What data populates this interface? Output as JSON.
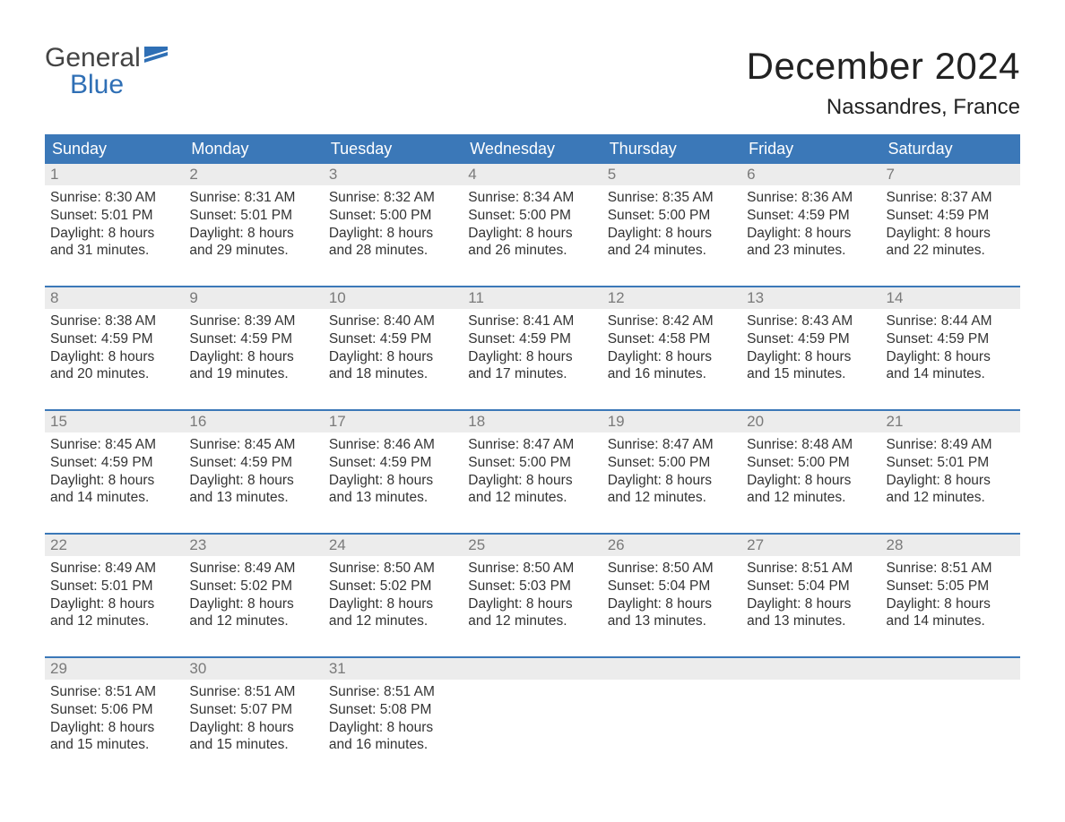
{
  "brand": {
    "general": "General",
    "blue": "Blue"
  },
  "title": "December 2024",
  "location": "Nassandres, France",
  "colors": {
    "header_bg": "#3b78b8",
    "header_text": "#ffffff",
    "daynum_bg": "#ececec",
    "daynum_text": "#7a7a7a",
    "body_text": "#333333",
    "rule": "#3b78b8",
    "logo_blue": "#2f6fb5"
  },
  "weekdays": [
    "Sunday",
    "Monday",
    "Tuesday",
    "Wednesday",
    "Thursday",
    "Friday",
    "Saturday"
  ],
  "weeks": [
    [
      {
        "n": "1",
        "sunrise": "Sunrise: 8:30 AM",
        "sunset": "Sunset: 5:01 PM",
        "d1": "Daylight: 8 hours",
        "d2": "and 31 minutes."
      },
      {
        "n": "2",
        "sunrise": "Sunrise: 8:31 AM",
        "sunset": "Sunset: 5:01 PM",
        "d1": "Daylight: 8 hours",
        "d2": "and 29 minutes."
      },
      {
        "n": "3",
        "sunrise": "Sunrise: 8:32 AM",
        "sunset": "Sunset: 5:00 PM",
        "d1": "Daylight: 8 hours",
        "d2": "and 28 minutes."
      },
      {
        "n": "4",
        "sunrise": "Sunrise: 8:34 AM",
        "sunset": "Sunset: 5:00 PM",
        "d1": "Daylight: 8 hours",
        "d2": "and 26 minutes."
      },
      {
        "n": "5",
        "sunrise": "Sunrise: 8:35 AM",
        "sunset": "Sunset: 5:00 PM",
        "d1": "Daylight: 8 hours",
        "d2": "and 24 minutes."
      },
      {
        "n": "6",
        "sunrise": "Sunrise: 8:36 AM",
        "sunset": "Sunset: 4:59 PM",
        "d1": "Daylight: 8 hours",
        "d2": "and 23 minutes."
      },
      {
        "n": "7",
        "sunrise": "Sunrise: 8:37 AM",
        "sunset": "Sunset: 4:59 PM",
        "d1": "Daylight: 8 hours",
        "d2": "and 22 minutes."
      }
    ],
    [
      {
        "n": "8",
        "sunrise": "Sunrise: 8:38 AM",
        "sunset": "Sunset: 4:59 PM",
        "d1": "Daylight: 8 hours",
        "d2": "and 20 minutes."
      },
      {
        "n": "9",
        "sunrise": "Sunrise: 8:39 AM",
        "sunset": "Sunset: 4:59 PM",
        "d1": "Daylight: 8 hours",
        "d2": "and 19 minutes."
      },
      {
        "n": "10",
        "sunrise": "Sunrise: 8:40 AM",
        "sunset": "Sunset: 4:59 PM",
        "d1": "Daylight: 8 hours",
        "d2": "and 18 minutes."
      },
      {
        "n": "11",
        "sunrise": "Sunrise: 8:41 AM",
        "sunset": "Sunset: 4:59 PM",
        "d1": "Daylight: 8 hours",
        "d2": "and 17 minutes."
      },
      {
        "n": "12",
        "sunrise": "Sunrise: 8:42 AM",
        "sunset": "Sunset: 4:58 PM",
        "d1": "Daylight: 8 hours",
        "d2": "and 16 minutes."
      },
      {
        "n": "13",
        "sunrise": "Sunrise: 8:43 AM",
        "sunset": "Sunset: 4:59 PM",
        "d1": "Daylight: 8 hours",
        "d2": "and 15 minutes."
      },
      {
        "n": "14",
        "sunrise": "Sunrise: 8:44 AM",
        "sunset": "Sunset: 4:59 PM",
        "d1": "Daylight: 8 hours",
        "d2": "and 14 minutes."
      }
    ],
    [
      {
        "n": "15",
        "sunrise": "Sunrise: 8:45 AM",
        "sunset": "Sunset: 4:59 PM",
        "d1": "Daylight: 8 hours",
        "d2": "and 14 minutes."
      },
      {
        "n": "16",
        "sunrise": "Sunrise: 8:45 AM",
        "sunset": "Sunset: 4:59 PM",
        "d1": "Daylight: 8 hours",
        "d2": "and 13 minutes."
      },
      {
        "n": "17",
        "sunrise": "Sunrise: 8:46 AM",
        "sunset": "Sunset: 4:59 PM",
        "d1": "Daylight: 8 hours",
        "d2": "and 13 minutes."
      },
      {
        "n": "18",
        "sunrise": "Sunrise: 8:47 AM",
        "sunset": "Sunset: 5:00 PM",
        "d1": "Daylight: 8 hours",
        "d2": "and 12 minutes."
      },
      {
        "n": "19",
        "sunrise": "Sunrise: 8:47 AM",
        "sunset": "Sunset: 5:00 PM",
        "d1": "Daylight: 8 hours",
        "d2": "and 12 minutes."
      },
      {
        "n": "20",
        "sunrise": "Sunrise: 8:48 AM",
        "sunset": "Sunset: 5:00 PM",
        "d1": "Daylight: 8 hours",
        "d2": "and 12 minutes."
      },
      {
        "n": "21",
        "sunrise": "Sunrise: 8:49 AM",
        "sunset": "Sunset: 5:01 PM",
        "d1": "Daylight: 8 hours",
        "d2": "and 12 minutes."
      }
    ],
    [
      {
        "n": "22",
        "sunrise": "Sunrise: 8:49 AM",
        "sunset": "Sunset: 5:01 PM",
        "d1": "Daylight: 8 hours",
        "d2": "and 12 minutes."
      },
      {
        "n": "23",
        "sunrise": "Sunrise: 8:49 AM",
        "sunset": "Sunset: 5:02 PM",
        "d1": "Daylight: 8 hours",
        "d2": "and 12 minutes."
      },
      {
        "n": "24",
        "sunrise": "Sunrise: 8:50 AM",
        "sunset": "Sunset: 5:02 PM",
        "d1": "Daylight: 8 hours",
        "d2": "and 12 minutes."
      },
      {
        "n": "25",
        "sunrise": "Sunrise: 8:50 AM",
        "sunset": "Sunset: 5:03 PM",
        "d1": "Daylight: 8 hours",
        "d2": "and 12 minutes."
      },
      {
        "n": "26",
        "sunrise": "Sunrise: 8:50 AM",
        "sunset": "Sunset: 5:04 PM",
        "d1": "Daylight: 8 hours",
        "d2": "and 13 minutes."
      },
      {
        "n": "27",
        "sunrise": "Sunrise: 8:51 AM",
        "sunset": "Sunset: 5:04 PM",
        "d1": "Daylight: 8 hours",
        "d2": "and 13 minutes."
      },
      {
        "n": "28",
        "sunrise": "Sunrise: 8:51 AM",
        "sunset": "Sunset: 5:05 PM",
        "d1": "Daylight: 8 hours",
        "d2": "and 14 minutes."
      }
    ],
    [
      {
        "n": "29",
        "sunrise": "Sunrise: 8:51 AM",
        "sunset": "Sunset: 5:06 PM",
        "d1": "Daylight: 8 hours",
        "d2": "and 15 minutes."
      },
      {
        "n": "30",
        "sunrise": "Sunrise: 8:51 AM",
        "sunset": "Sunset: 5:07 PM",
        "d1": "Daylight: 8 hours",
        "d2": "and 15 minutes."
      },
      {
        "n": "31",
        "sunrise": "Sunrise: 8:51 AM",
        "sunset": "Sunset: 5:08 PM",
        "d1": "Daylight: 8 hours",
        "d2": "and 16 minutes."
      },
      {
        "empty": true
      },
      {
        "empty": true
      },
      {
        "empty": true
      },
      {
        "empty": true
      }
    ]
  ]
}
